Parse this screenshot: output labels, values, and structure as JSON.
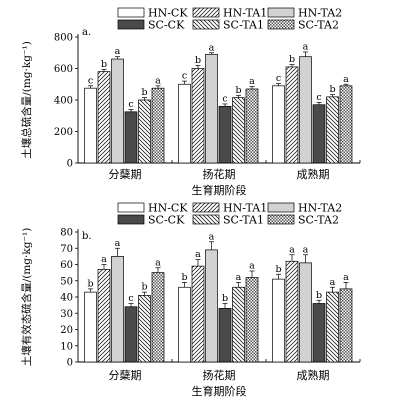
{
  "patterns": {
    "HN-CK": "white",
    "HN-TA1": "hatch-right",
    "HN-TA2": "light-gray",
    "SC-CK": "dark-gray",
    "SC-TA1": "hatch-left",
    "SC-TA2": "crosshatch"
  },
  "chart_data": [
    {
      "type": "bar",
      "panel": "a.",
      "ylabel": "土壤总硫含量/(mg·kg⁻¹)",
      "xlabel": "生育期阶段",
      "categories": [
        "分蘖期",
        "扬花期",
        "成熟期"
      ],
      "ylim": [
        0,
        800
      ],
      "yticks": [
        0,
        200,
        400,
        600,
        800
      ],
      "legend": [
        "HN-CK",
        "HN-TA1",
        "HN-TA2",
        "SC-CK",
        "SC-TA1",
        "SC-TA2"
      ],
      "series": [
        {
          "name": "HN-CK",
          "values": [
            475,
            500,
            490
          ],
          "errors": [
            15,
            20,
            15
          ],
          "labels": [
            "c",
            "c",
            "c"
          ]
        },
        {
          "name": "HN-TA1",
          "values": [
            580,
            600,
            610
          ],
          "errors": [
            15,
            20,
            15
          ],
          "labels": [
            "b",
            "b",
            "b"
          ]
        },
        {
          "name": "HN-TA2",
          "values": [
            660,
            690,
            675
          ],
          "errors": [
            15,
            10,
            30
          ],
          "labels": [
            "a",
            "a",
            "a"
          ]
        },
        {
          "name": "SC-CK",
          "values": [
            325,
            360,
            370
          ],
          "errors": [
            15,
            15,
            15
          ],
          "labels": [
            "c",
            "c",
            "c"
          ]
        },
        {
          "name": "SC-TA1",
          "values": [
            400,
            415,
            420
          ],
          "errors": [
            15,
            15,
            15
          ],
          "labels": [
            "b",
            "b",
            "b"
          ]
        },
        {
          "name": "SC-TA2",
          "values": [
            475,
            470,
            490
          ],
          "errors": [
            15,
            15,
            10
          ],
          "labels": [
            "a",
            "a",
            "a"
          ]
        }
      ]
    },
    {
      "type": "bar",
      "panel": "b.",
      "ylabel": "土壤有效态硫含量/(mg·kg⁻¹)",
      "xlabel": "生育期阶段",
      "categories": [
        "分蘖期",
        "扬花期",
        "成熟期"
      ],
      "ylim": [
        0,
        80
      ],
      "yticks": [
        0,
        10,
        20,
        30,
        40,
        50,
        60,
        70,
        80
      ],
      "legend": [
        "HN-CK",
        "HN-TA1",
        "HN-TA2",
        "SC-CK",
        "SC-TA1",
        "SC-TA2"
      ],
      "series": [
        {
          "name": "HN-CK",
          "values": [
            43,
            46,
            51
          ],
          "errors": [
            2,
            3,
            3
          ],
          "labels": [
            "b",
            "b",
            "b"
          ]
        },
        {
          "name": "HN-TA1",
          "values": [
            57,
            59,
            62
          ],
          "errors": [
            3,
            4,
            4
          ],
          "labels": [
            "a",
            "a",
            "a"
          ]
        },
        {
          "name": "HN-TA2",
          "values": [
            65,
            69,
            61
          ],
          "errors": [
            5,
            5,
            5
          ],
          "labels": [
            "a",
            "a",
            "a"
          ]
        },
        {
          "name": "SC-CK",
          "values": [
            34,
            33,
            36
          ],
          "errors": [
            2,
            3,
            2
          ],
          "labels": [
            "c",
            "b",
            "b"
          ]
        },
        {
          "name": "SC-TA1",
          "values": [
            41,
            46,
            43
          ],
          "errors": [
            2,
            3,
            3
          ],
          "labels": [
            "b",
            "a",
            "a"
          ]
        },
        {
          "name": "SC-TA2",
          "values": [
            55,
            52,
            45
          ],
          "errors": [
            3,
            4,
            4
          ],
          "labels": [
            "a",
            "a",
            "a"
          ]
        }
      ]
    }
  ]
}
